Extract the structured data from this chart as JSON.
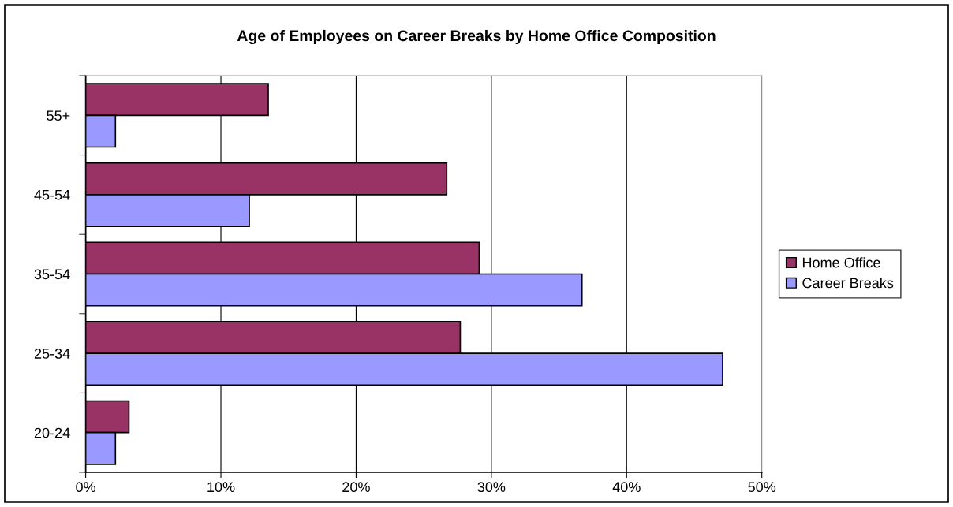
{
  "chart_data": {
    "type": "bar",
    "orientation": "horizontal",
    "title": "Age of Employees on Career Breaks by Home Office Composition",
    "categories": [
      "55+",
      "45-54",
      "35-54",
      "25-34",
      "20-24"
    ],
    "series": [
      {
        "name": "Home Office",
        "color": "#993366",
        "values": [
          13.5,
          26.7,
          29.1,
          27.7,
          3.2
        ]
      },
      {
        "name": "Career Breaks",
        "color": "#9999ff",
        "values": [
          2.2,
          12.1,
          36.7,
          47.1,
          2.2
        ]
      }
    ],
    "xlim": [
      0,
      50
    ],
    "xticks": [
      {
        "value": 0,
        "label": "0%"
      },
      {
        "value": 10,
        "label": "10%"
      },
      {
        "value": 20,
        "label": "20%"
      },
      {
        "value": 30,
        "label": "30%"
      },
      {
        "value": 40,
        "label": "40%"
      },
      {
        "value": 50,
        "label": "50%"
      }
    ],
    "grid": "x",
    "legend": "right"
  }
}
